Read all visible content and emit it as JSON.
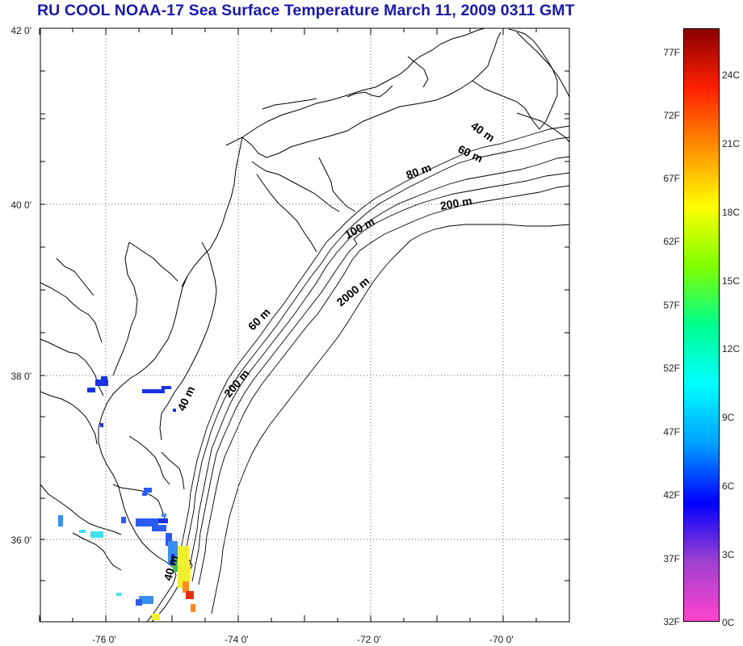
{
  "title": "RU COOL  NOAA-17 Sea Surface Temperature March 11, 2009 0311 GMT",
  "map": {
    "lon_range": [
      -77,
      -69
    ],
    "lat_range": [
      35,
      42
    ],
    "lat_ticks": [
      "42 0'",
      "40 0'",
      "38 0'",
      "36 0'"
    ],
    "lon_ticks": [
      "-76 0'",
      "-74 0'",
      "-72 0'",
      "-70 0'"
    ],
    "grid": "dotted",
    "coast_color": "#000000",
    "contour_labels": [
      "40 m",
      "60 m",
      "80 m",
      "200 m",
      "100 m",
      "2000 m",
      "60 m",
      "200 m",
      "40 m",
      "40 m"
    ]
  },
  "colorbar": {
    "fahrenheit_labels": [
      "77F",
      "72F",
      "67F",
      "62F",
      "57F",
      "52F",
      "47F",
      "42F",
      "37F",
      "32F"
    ],
    "celsius_labels": [
      "24C",
      "21C",
      "18C",
      "15C",
      "12C",
      "9C",
      "6C",
      "3C",
      "0C"
    ],
    "range_f": [
      32,
      79
    ],
    "colors": [
      "#ff44cc",
      "#a040d0",
      "#0000ff",
      "#00a0ff",
      "#00ffff",
      "#00ff90",
      "#80ff00",
      "#ffff00",
      "#ff9000",
      "#ff2000",
      "#8b0000"
    ]
  },
  "sst_colors": {
    "dark_blue": "#1a34e0",
    "blue": "#2a5cf0",
    "light_blue": "#3a90f0",
    "cyan": "#40e0f0",
    "green": "#40c060",
    "yellow": "#f0f030",
    "orange": "#ff8c20",
    "red": "#e83010"
  }
}
